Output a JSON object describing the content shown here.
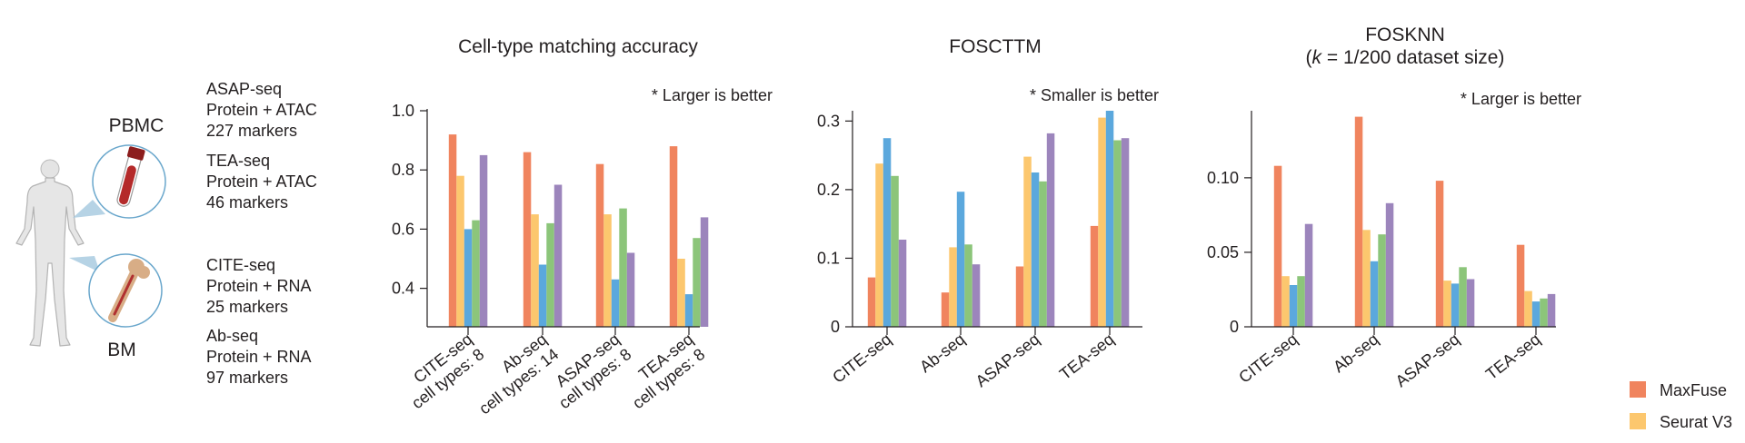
{
  "illustration": {
    "pbmc_label": "PBMC",
    "bm_label": "BM",
    "icons": [
      "human-body-icon",
      "blood-tube-icon",
      "bone-icon"
    ]
  },
  "datasets": [
    {
      "lines": [
        "ASAP-seq",
        "Protein + ATAC",
        "227 markers"
      ]
    },
    {
      "lines": [
        "TEA-seq",
        "Protein + ATAC",
        "46 markers"
      ]
    },
    {
      "lines": [
        "CITE-seq",
        "Protein + RNA",
        "25 markers"
      ]
    },
    {
      "lines": [
        "Ab-seq",
        "Protein + RNA",
        "97 markers"
      ]
    }
  ],
  "legend": [
    {
      "name": "MaxFuse",
      "color": "#f0845e"
    },
    {
      "name": "Seurat V3",
      "color": "#fcc76e"
    }
  ],
  "colors": {
    "maxfuse": "#f0845e",
    "seurat_v3": "#fcc76e",
    "blue_series": "#5ba8dd",
    "green_series": "#8cc57a",
    "purple_series": "#9c85bc",
    "axis": "#231f20"
  },
  "chart_data": [
    {
      "type": "bar",
      "title": "Cell-type matching accuracy",
      "note": "* Larger is better",
      "categories": [
        [
          "CITE-seq",
          "cell types: 8"
        ],
        [
          "Ab-seq",
          "cell types: 14"
        ],
        [
          "ASAP-seq",
          "cell types: 8"
        ],
        [
          "TEA-seq",
          "cell types: 8"
        ]
      ],
      "yticks": [
        0.4,
        0.6,
        0.8,
        1.0
      ],
      "ytick_labels": [
        "0.4",
        "0.6",
        "0.8",
        "1.0"
      ],
      "ylim": [
        0.27,
        1.0
      ],
      "series": [
        {
          "name": "MaxFuse",
          "color": "#f0845e",
          "values": [
            0.92,
            0.86,
            0.82,
            0.88
          ]
        },
        {
          "name": "Seurat V3",
          "color": "#fcc76e",
          "values": [
            0.78,
            0.65,
            0.65,
            0.5
          ]
        },
        {
          "color": "#5ba8dd",
          "values": [
            0.6,
            0.48,
            0.43,
            0.38
          ]
        },
        {
          "color": "#8cc57a",
          "values": [
            0.63,
            0.62,
            0.67,
            0.57
          ]
        },
        {
          "color": "#9c85bc",
          "values": [
            0.85,
            0.75,
            0.52,
            0.64
          ]
        }
      ]
    },
    {
      "type": "bar",
      "title": "FOSCTTM",
      "note": "* Smaller is better",
      "categories": [
        [
          "CITE-seq"
        ],
        [
          "Ab-seq"
        ],
        [
          "ASAP-seq"
        ],
        [
          "TEA-seq"
        ]
      ],
      "yticks": [
        0,
        0.1,
        0.2,
        0.3
      ],
      "ytick_labels": [
        "0",
        "0.1",
        "0.2",
        "0.3"
      ],
      "ylim": [
        0,
        0.315
      ],
      "series": [
        {
          "name": "MaxFuse",
          "color": "#f0845e",
          "values": [
            0.072,
            0.05,
            0.088,
            0.147
          ]
        },
        {
          "name": "Seurat V3",
          "color": "#fcc76e",
          "values": [
            0.238,
            0.116,
            0.248,
            0.305
          ]
        },
        {
          "color": "#5ba8dd",
          "values": [
            0.275,
            0.197,
            0.225,
            0.315
          ]
        },
        {
          "color": "#8cc57a",
          "values": [
            0.22,
            0.12,
            0.212,
            0.272
          ]
        },
        {
          "color": "#9c85bc",
          "values": [
            0.127,
            0.091,
            0.282,
            0.275
          ]
        }
      ]
    },
    {
      "type": "bar",
      "title": "FOSKNN",
      "subtitle_parts": [
        "(",
        "k",
        " = 1/200 dataset size)"
      ],
      "note": "* Larger is better",
      "categories": [
        [
          "CITE-seq"
        ],
        [
          "Ab-seq"
        ],
        [
          "ASAP-seq"
        ],
        [
          "TEA-seq"
        ]
      ],
      "yticks": [
        0,
        0.05,
        0.1
      ],
      "ytick_labels": [
        "0",
        "0.05",
        "0.10"
      ],
      "ylim": [
        0,
        0.145
      ],
      "series": [
        {
          "name": "MaxFuse",
          "color": "#f0845e",
          "values": [
            0.108,
            0.141,
            0.098,
            0.055
          ]
        },
        {
          "name": "Seurat V3",
          "color": "#fcc76e",
          "values": [
            0.034,
            0.065,
            0.031,
            0.024
          ]
        },
        {
          "color": "#5ba8dd",
          "values": [
            0.028,
            0.044,
            0.029,
            0.017
          ]
        },
        {
          "color": "#8cc57a",
          "values": [
            0.034,
            0.062,
            0.04,
            0.019
          ]
        },
        {
          "color": "#9c85bc",
          "values": [
            0.069,
            0.083,
            0.032,
            0.022
          ]
        }
      ]
    }
  ]
}
